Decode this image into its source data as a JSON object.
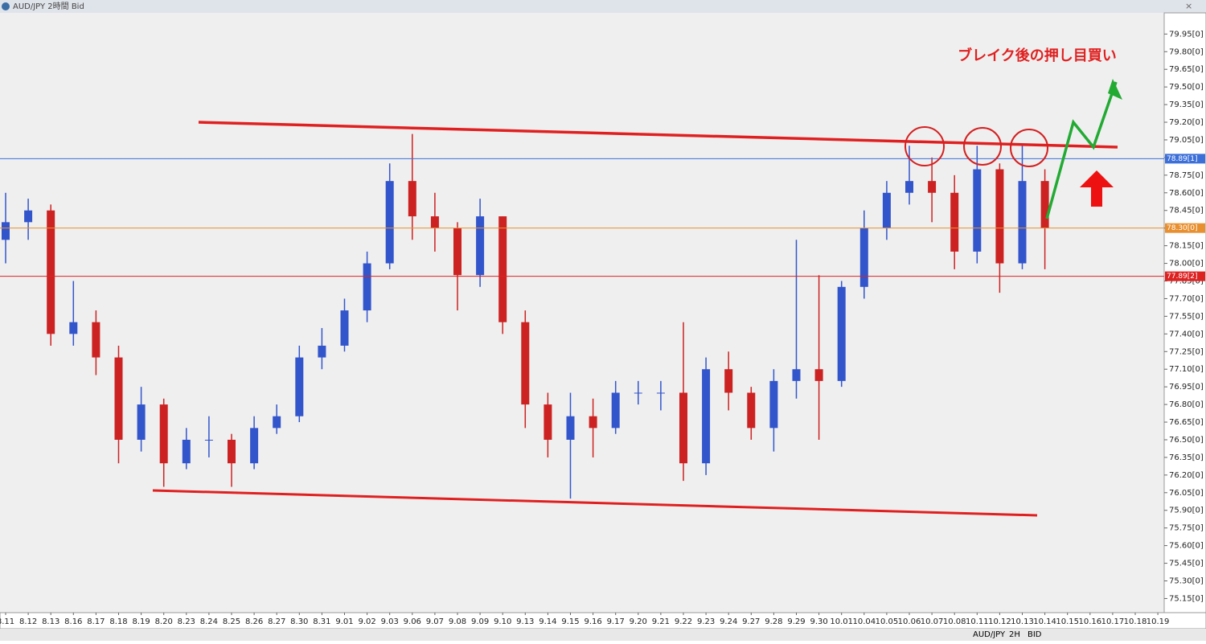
{
  "chart_data": {
    "type": "candlestick",
    "title": "AUD/JPY 2時間 Bid",
    "annotation": "ブレイク後の押し目買い",
    "categories": [
      "8.11",
      "8.12",
      "8.13",
      "8.16",
      "8.17",
      "8.18",
      "8.19",
      "8.20",
      "8.23",
      "8.24",
      "8.25",
      "8.26",
      "8.27",
      "8.30",
      "8.31",
      "9.01",
      "9.02",
      "9.03",
      "9.06",
      "9.07",
      "9.08",
      "9.09",
      "9.10",
      "9.13",
      "9.14",
      "9.15",
      "9.16",
      "9.17",
      "9.20",
      "9.21",
      "9.22",
      "9.23",
      "9.24",
      "9.27",
      "9.28",
      "9.29",
      "9.30",
      "10.01",
      "10.04",
      "10.05",
      "10.06",
      "10.07",
      "10.08",
      "10.11",
      "10.12",
      "10.13",
      "10.14",
      "10.15",
      "10.16",
      "10.17",
      "10.18",
      "10.19"
    ],
    "open": [
      78.2,
      78.35,
      78.45,
      77.4,
      77.5,
      77.2,
      76.5,
      76.8,
      76.3,
      76.5,
      76.5,
      76.3,
      76.6,
      76.7,
      77.2,
      77.3,
      77.6,
      78.0,
      78.7,
      78.4,
      78.3,
      77.9,
      78.4,
      77.5,
      76.8,
      76.5,
      76.7,
      76.6,
      76.9,
      76.9,
      76.9,
      76.3,
      77.1,
      76.9,
      76.6,
      77.0,
      77.1,
      77.0,
      77.8,
      78.3,
      78.6,
      78.7,
      78.6,
      78.1,
      78.8,
      78.0,
      78.7,
      null,
      null,
      null,
      null,
      null
    ],
    "high": [
      78.6,
      78.55,
      78.5,
      77.85,
      77.6,
      77.3,
      76.95,
      76.85,
      76.6,
      76.7,
      76.55,
      76.7,
      76.8,
      77.3,
      77.45,
      77.7,
      78.1,
      78.85,
      79.1,
      78.6,
      78.35,
      78.55,
      78.4,
      77.6,
      76.9,
      76.9,
      76.85,
      77.0,
      77.0,
      77.0,
      77.5,
      77.2,
      77.25,
      76.95,
      77.1,
      78.2,
      77.9,
      77.85,
      78.45,
      78.7,
      79.0,
      78.9,
      78.75,
      79.0,
      78.85,
      79.0,
      78.8,
      null,
      null,
      null,
      null,
      null
    ],
    "low": [
      78.0,
      78.2,
      77.3,
      77.3,
      77.05,
      76.3,
      76.4,
      76.1,
      76.25,
      76.35,
      76.1,
      76.25,
      76.55,
      76.65,
      77.1,
      77.25,
      77.5,
      77.95,
      78.2,
      78.1,
      77.6,
      77.8,
      77.4,
      76.6,
      76.35,
      76.0,
      76.35,
      76.55,
      76.8,
      76.75,
      76.15,
      76.2,
      76.75,
      76.5,
      76.4,
      76.85,
      76.5,
      76.95,
      77.7,
      78.2,
      78.5,
      78.35,
      77.95,
      78.0,
      77.75,
      77.95,
      77.95,
      null,
      null,
      null,
      null,
      null
    ],
    "close": [
      78.35,
      78.45,
      77.4,
      77.5,
      77.2,
      76.5,
      76.8,
      76.3,
      76.5,
      76.5,
      76.3,
      76.6,
      76.7,
      77.2,
      77.3,
      77.6,
      78.0,
      78.7,
      78.4,
      78.3,
      77.9,
      78.4,
      77.5,
      76.8,
      76.5,
      76.7,
      76.6,
      76.9,
      76.9,
      76.9,
      76.3,
      77.1,
      76.9,
      76.6,
      77.0,
      77.1,
      77.0,
      77.8,
      78.3,
      78.6,
      78.7,
      78.6,
      78.1,
      78.8,
      78.0,
      78.7,
      78.3,
      null,
      null,
      null,
      null,
      null
    ],
    "up_color": "#3355cc",
    "down_color": "#cc2222",
    "ylim": [
      75.03,
      80.13
    ],
    "yticks": [
      {
        "value": 79.95,
        "label": "79.95[0]"
      },
      {
        "value": 79.8,
        "label": "79.80[0]"
      },
      {
        "value": 79.65,
        "label": "79.65[0]"
      },
      {
        "value": 79.5,
        "label": "79.50[0]"
      },
      {
        "value": 79.35,
        "label": "79.35[0]"
      },
      {
        "value": 79.2,
        "label": "79.20[0]"
      },
      {
        "value": 79.05,
        "label": "79.05[0]"
      },
      {
        "value": 78.9,
        "label": "78.90[0]"
      },
      {
        "value": 78.75,
        "label": "78.75[0]"
      },
      {
        "value": 78.6,
        "label": "78.60[0]"
      },
      {
        "value": 78.45,
        "label": "78.45[0]"
      },
      {
        "value": 78.3,
        "label": "78.30[0]"
      },
      {
        "value": 78.15,
        "label": "78.15[0]"
      },
      {
        "value": 78.0,
        "label": "78.00[0]"
      },
      {
        "value": 77.85,
        "label": "77.85[0]"
      },
      {
        "value": 77.7,
        "label": "77.70[0]"
      },
      {
        "value": 77.55,
        "label": "77.55[0]"
      },
      {
        "value": 77.4,
        "label": "77.40[0]"
      },
      {
        "value": 77.25,
        "label": "77.25[0]"
      },
      {
        "value": 77.1,
        "label": "77.10[0]"
      },
      {
        "value": 76.95,
        "label": "76.95[0]"
      },
      {
        "value": 76.8,
        "label": "76.80[0]"
      },
      {
        "value": 76.65,
        "label": "76.65[0]"
      },
      {
        "value": 76.5,
        "label": "76.50[0]"
      },
      {
        "value": 76.35,
        "label": "76.35[0]"
      },
      {
        "value": 76.2,
        "label": "76.20[0]"
      },
      {
        "value": 76.05,
        "label": "76.05[0]"
      },
      {
        "value": 75.9,
        "label": "75.90[0]"
      },
      {
        "value": 75.75,
        "label": "75.75[0]"
      },
      {
        "value": 75.6,
        "label": "75.60[0]"
      },
      {
        "value": 75.45,
        "label": "75.45[0]"
      },
      {
        "value": 75.3,
        "label": "75.30[0]"
      },
      {
        "value": 75.15,
        "label": "75.15[0]"
      }
    ],
    "price_lines": [
      {
        "value": 78.89,
        "label": "78.89[1]",
        "color": "#3c6fd8"
      },
      {
        "value": 78.3,
        "label": "78.30[0]",
        "color": "#e89030"
      },
      {
        "value": 77.89,
        "label": "77.89[2]",
        "color": "#dd2222"
      }
    ]
  },
  "toolbar": [
    "AUD/JPY",
    "2H",
    "BID"
  ]
}
